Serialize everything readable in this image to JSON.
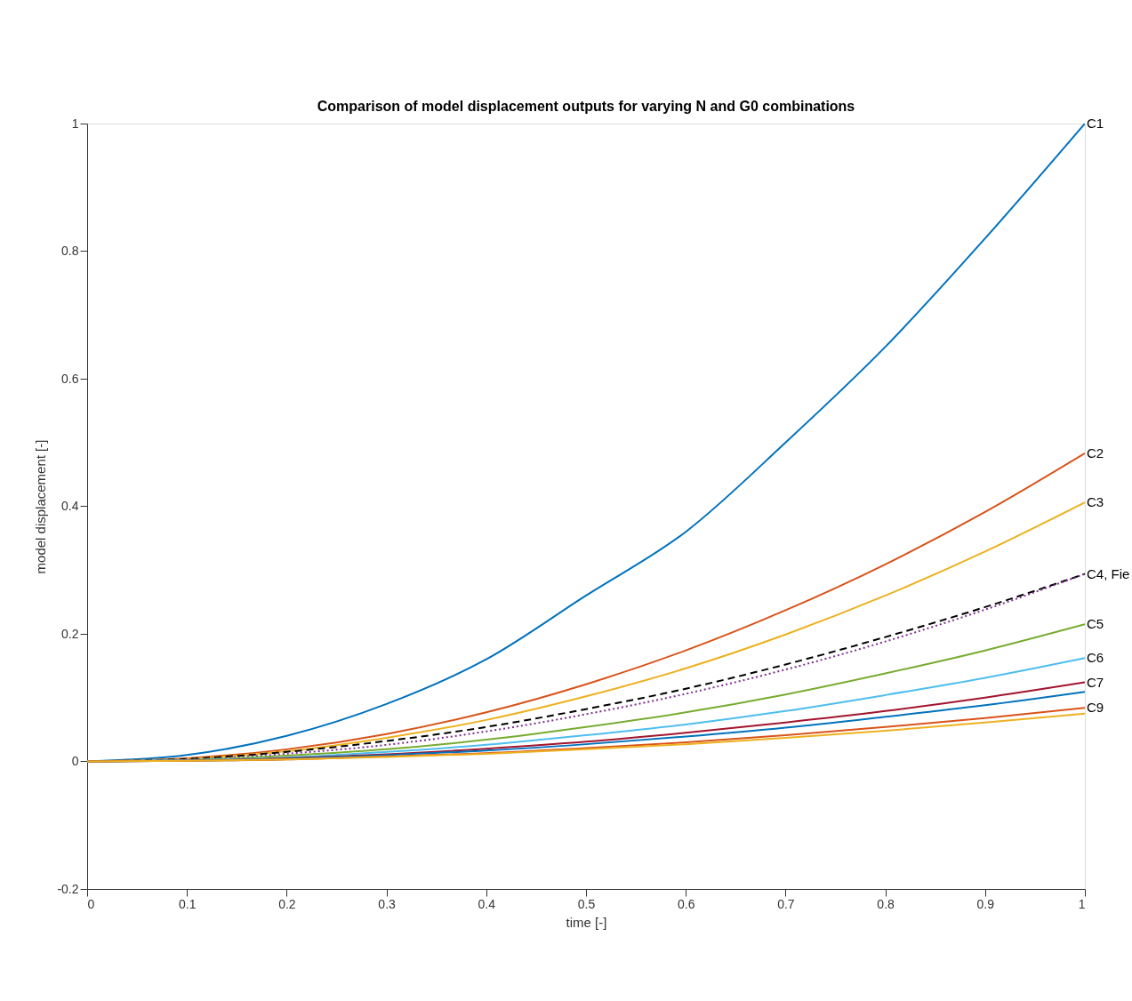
{
  "chart_data": {
    "type": "line",
    "title": "Comparison of model displacement outputs for varying N and G0 combinations",
    "xlabel": "time [-]",
    "ylabel": "model displacement [-]",
    "x": [
      0,
      0.1,
      0.2,
      0.3,
      0.4,
      0.5,
      0.6,
      0.7,
      0.8,
      0.9,
      1
    ],
    "series": [
      {
        "name": "C1",
        "color": "#0072bd",
        "values": [
          0,
          0.01,
          0.04,
          0.09,
          0.16,
          0.26,
          0.36,
          0.5,
          0.65,
          0.82,
          1
        ]
      },
      {
        "name": "C2",
        "color": "#d95319",
        "values": [
          0,
          0.005,
          0.019,
          0.043,
          0.077,
          0.121,
          0.174,
          0.237,
          0.309,
          0.391,
          0.483
        ]
      },
      {
        "name": "C3",
        "color": "#edb120",
        "values": [
          0,
          0.004,
          0.016,
          0.037,
          0.065,
          0.102,
          0.146,
          0.199,
          0.26,
          0.329,
          0.406
        ]
      },
      {
        "color": "#000000",
        "line_style": "dashed",
        "values": [
          0,
          0.004,
          0.015,
          0.032,
          0.054,
          0.082,
          0.114,
          0.152,
          0.195,
          0.242,
          0.294
        ]
      },
      {
        "name": "C4, Fie",
        "color": "#7e2f8e",
        "line_style": "dotted",
        "values": [
          0,
          0.003,
          0.012,
          0.026,
          0.047,
          0.074,
          0.106,
          0.144,
          0.188,
          0.238,
          0.294
        ]
      },
      {
        "name": "C5",
        "color": "#77ac30",
        "values": [
          0,
          0.002,
          0.009,
          0.019,
          0.034,
          0.054,
          0.077,
          0.105,
          0.138,
          0.174,
          0.215
        ]
      },
      {
        "name": "C6",
        "color": "#4dbeee",
        "values": [
          0,
          0.002,
          0.006,
          0.015,
          0.026,
          0.041,
          0.058,
          0.079,
          0.104,
          0.131,
          0.162
        ]
      },
      {
        "name": "C7",
        "color": "#a2142f",
        "values": [
          0,
          0.001,
          0.005,
          0.011,
          0.02,
          0.031,
          0.045,
          0.061,
          0.079,
          0.1,
          0.124
        ]
      },
      {
        "color": "#0072bd",
        "values": [
          0,
          0.001,
          0.004,
          0.01,
          0.017,
          0.027,
          0.039,
          0.053,
          0.07,
          0.088,
          0.109
        ]
      },
      {
        "name": "C9",
        "color": "#d95319",
        "values": [
          0,
          0.001,
          0.003,
          0.008,
          0.013,
          0.021,
          0.03,
          0.041,
          0.054,
          0.068,
          0.084
        ]
      },
      {
        "color": "#edb120",
        "values": [
          0,
          0.001,
          0.003,
          0.007,
          0.012,
          0.019,
          0.027,
          0.037,
          0.048,
          0.061,
          0.075
        ]
      }
    ],
    "xlim": [
      0,
      1
    ],
    "xticks": [
      0,
      0.1,
      0.2,
      0.3,
      0.4,
      0.5,
      0.6,
      0.7,
      0.8,
      0.9,
      1
    ],
    "ylim": [
      -0.2,
      1
    ],
    "yticks": [
      -0.2,
      0,
      0.2,
      0.4,
      0.6,
      0.8,
      1
    ],
    "grid": false,
    "line_style": "solid",
    "marker": "none"
  }
}
